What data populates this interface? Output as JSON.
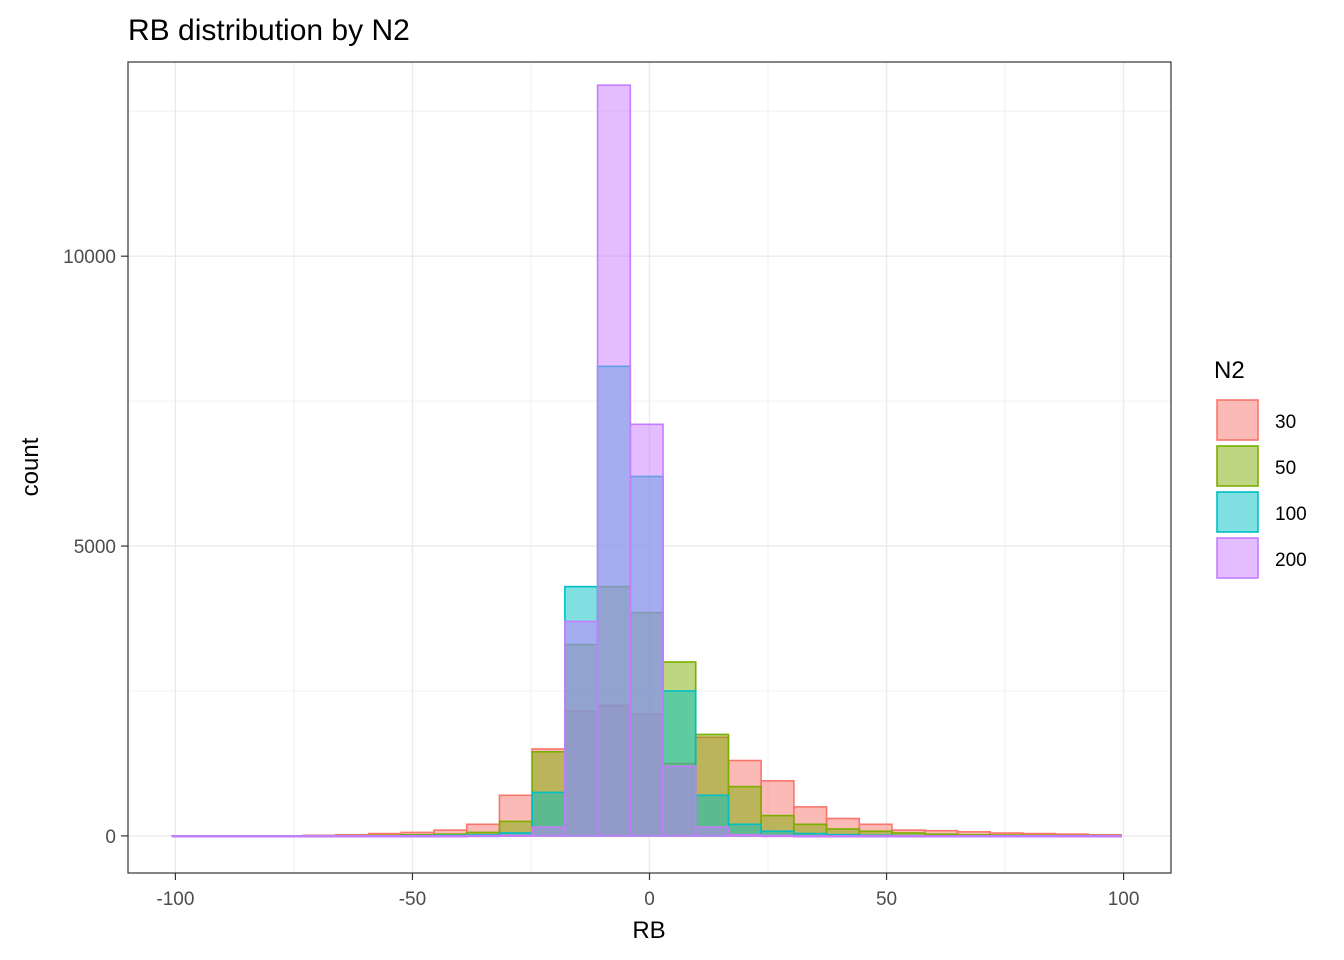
{
  "chart_data": {
    "type": "histogram",
    "title": "RB distribution by N2",
    "xlabel": "RB",
    "ylabel": "count",
    "xlim": [
      -110,
      110
    ],
    "ylim": [
      -640,
      13350
    ],
    "x_ticks": [
      -100,
      -50,
      0,
      50,
      100
    ],
    "x_tick_labels": [
      "-100",
      "-50",
      "0",
      "50",
      "100"
    ],
    "y_ticks": [
      0,
      5000,
      10000
    ],
    "y_tick_labels": [
      "0",
      "5000",
      "10000"
    ],
    "grid": true,
    "bin_edges": [
      -100.65,
      -93.75,
      -86.85,
      -79.95,
      -73.05,
      -66.15,
      -59.25,
      -52.35,
      -45.45,
      -38.55,
      -31.65,
      -24.75,
      -17.85,
      -10.95,
      -4.05,
      2.85,
      9.75,
      16.65,
      23.55,
      30.45,
      37.35,
      44.25,
      51.15,
      58.05,
      64.95,
      71.85,
      78.75,
      85.65,
      92.55,
      99.45
    ],
    "legend": {
      "title": "N2",
      "position": "right"
    },
    "series": [
      {
        "name": "30",
        "color": "#F8766D",
        "values": [
          0,
          0,
          0,
          0,
          10,
          20,
          40,
          60,
          100,
          200,
          700,
          1500,
          2150,
          2250,
          2100,
          1250,
          1700,
          1300,
          950,
          500,
          300,
          200,
          100,
          90,
          70,
          50,
          40,
          30,
          20
        ]
      },
      {
        "name": "50",
        "color": "#7CAE00",
        "values": [
          0,
          0,
          0,
          0,
          0,
          5,
          10,
          20,
          30,
          60,
          250,
          1450,
          3300,
          4300,
          3850,
          3000,
          1750,
          850,
          350,
          200,
          120,
          80,
          50,
          30,
          20,
          15,
          10,
          5,
          5
        ]
      },
      {
        "name": "100",
        "color": "#00BFC4",
        "values": [
          0,
          0,
          0,
          0,
          0,
          0,
          0,
          5,
          10,
          20,
          50,
          750,
          4300,
          8100,
          6200,
          2500,
          700,
          200,
          80,
          40,
          20,
          10,
          5,
          0,
          0,
          0,
          0,
          0,
          0
        ]
      },
      {
        "name": "200",
        "color": "#C77CFF",
        "values": [
          0,
          0,
          0,
          0,
          0,
          0,
          0,
          0,
          0,
          5,
          10,
          150,
          3700,
          12950,
          7100,
          1200,
          150,
          20,
          5,
          0,
          0,
          0,
          0,
          0,
          0,
          0,
          0,
          0,
          0
        ]
      }
    ]
  }
}
